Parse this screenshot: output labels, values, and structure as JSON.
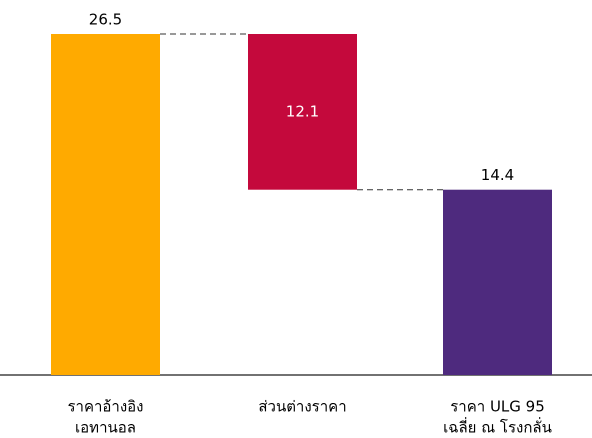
{
  "chart_data": {
    "type": "waterfall",
    "categories": [
      [
        "ราคาอ้างอิง",
        "เอทานอล"
      ],
      [
        "ส่วนต่างราคา"
      ],
      [
        "ราคา ULG 95",
        "เฉลี่ย ณ โรงกลั่น"
      ]
    ],
    "values": [
      26.5,
      12.1,
      14.4
    ],
    "measures": [
      "absolute",
      "decrease",
      "total"
    ],
    "colors": [
      "#FFAA00",
      "#C4093C",
      "#4E2A7E"
    ]
  }
}
